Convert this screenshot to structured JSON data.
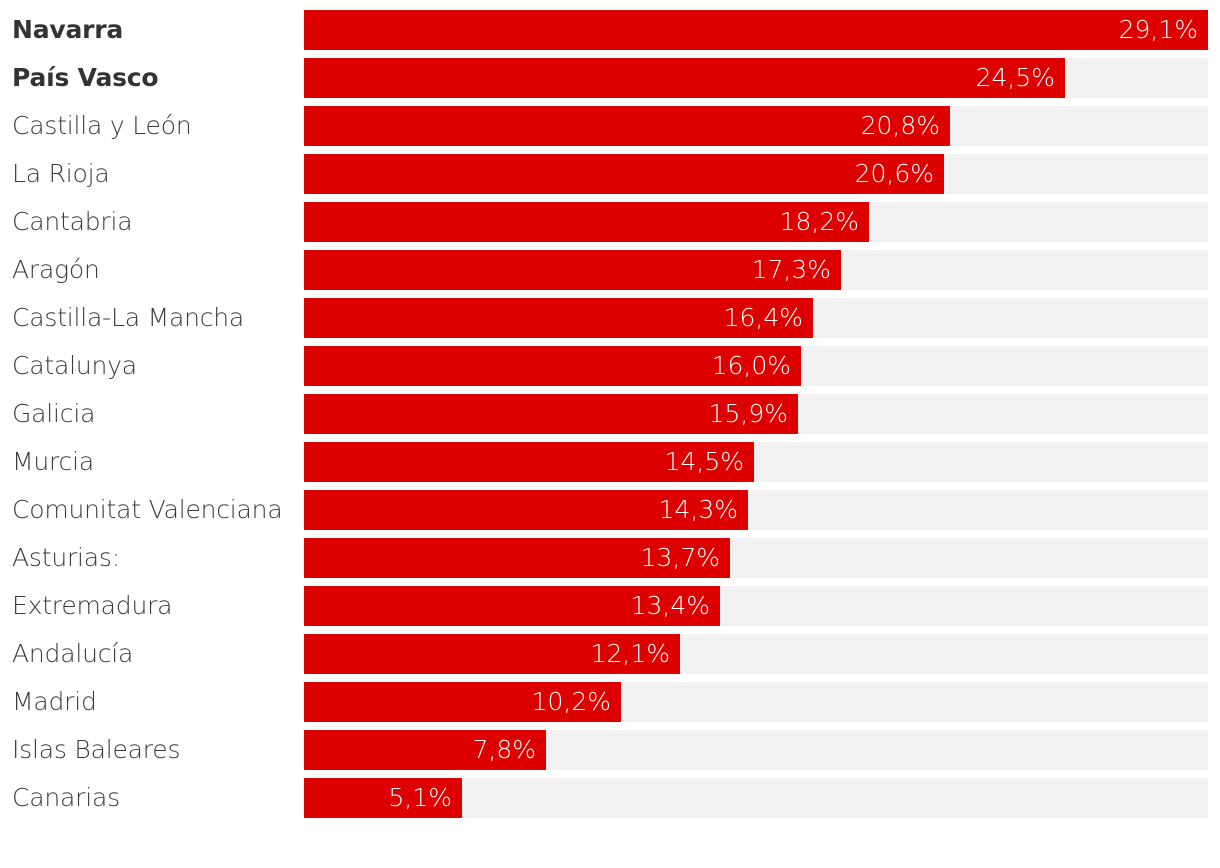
{
  "chart_data": {
    "type": "bar",
    "orientation": "horizontal",
    "title": "",
    "xlabel": "",
    "ylabel": "",
    "xlim": [
      0,
      29.1
    ],
    "bar_color": "#dd0000",
    "track_color": "#f2f2f2",
    "categories": [
      "Navarra",
      "País Vasco",
      "Castilla y León",
      "La Rioja",
      "Cantabria",
      "Aragón",
      "Castilla-La Mancha",
      "Catalunya",
      "Galicia",
      "Murcia",
      "Comunitat Valenciana",
      "Asturias:",
      "Extremadura",
      "Andalucía",
      "Madrid",
      "Islas Baleares",
      "Canarias"
    ],
    "values": [
      29.1,
      24.5,
      20.8,
      20.6,
      18.2,
      17.3,
      16.4,
      16.0,
      15.9,
      14.5,
      14.3,
      13.7,
      13.4,
      12.1,
      10.2,
      7.8,
      5.1
    ],
    "value_labels": [
      "29,1%",
      "24,5%",
      "20,8%",
      "20,6%",
      "18,2%",
      "17,3%",
      "16,4%",
      "16,0%",
      "15,9%",
      "14,5%",
      "14,3%",
      "13,7%",
      "13,4%",
      "12,1%",
      "10,2%",
      "7,8%",
      "5,1%"
    ],
    "bold_categories": [
      "Navarra",
      "País Vasco"
    ]
  }
}
